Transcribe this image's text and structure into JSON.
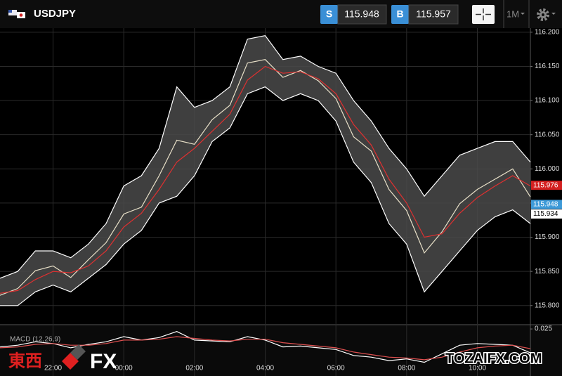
{
  "header": {
    "symbol": "USDJPY",
    "sell_label": "S",
    "sell_price": "115.948",
    "buy_label": "B",
    "buy_price": "115.957",
    "timeframe": "1M"
  },
  "watermark": {
    "logo_cjk": "東西",
    "logo_fx": "FX",
    "site": "TOZAIFX.COM"
  },
  "chart_data": [
    {
      "type": "line",
      "x": [
        "20:30",
        "21:00",
        "21:30",
        "22:00",
        "22:30",
        "23:00",
        "23:30",
        "00:00",
        "00:30",
        "01:00",
        "01:30",
        "02:00",
        "02:30",
        "03:00",
        "03:30",
        "04:00",
        "04:30",
        "05:00",
        "05:30",
        "06:00",
        "06:30",
        "07:00",
        "07:30",
        "08:00",
        "08:30",
        "09:00",
        "09:30",
        "10:00",
        "10:30",
        "11:00",
        "11:30"
      ],
      "series": [
        {
          "color": "#ffffff",
          "values": [
            115.84,
            115.85,
            115.88,
            115.88,
            115.87,
            115.89,
            115.92,
            115.975,
            115.99,
            116.03,
            116.12,
            116.09,
            116.1,
            116.12,
            116.19,
            116.195,
            116.16,
            116.165,
            116.15,
            116.14,
            116.1,
            116.07,
            116.03,
            116.0,
            115.96,
            115.99,
            116.02,
            116.03,
            116.04,
            116.04,
            116.01
          ]
        },
        {
          "color": "#ffffff",
          "values": [
            115.8,
            115.8,
            115.82,
            115.83,
            115.82,
            115.84,
            115.86,
            115.89,
            115.91,
            115.95,
            115.96,
            115.99,
            116.04,
            116.06,
            116.11,
            116.12,
            116.1,
            116.11,
            116.1,
            116.07,
            116.01,
            115.98,
            115.92,
            115.89,
            115.82,
            115.85,
            115.88,
            115.91,
            115.93,
            115.94,
            115.92
          ]
        },
        {
          "color": "#e8e0c8",
          "values": [
            115.815,
            115.825,
            115.851,
            115.858,
            115.841,
            115.867,
            115.892,
            115.934,
            115.944,
            115.99,
            116.042,
            116.036,
            116.072,
            116.093,
            116.155,
            116.16,
            116.134,
            116.144,
            116.129,
            116.103,
            116.047,
            116.026,
            115.97,
            115.939,
            115.877,
            115.908,
            115.949,
            115.97,
            115.985,
            116.0,
            115.959
          ]
        },
        {
          "color": "#e03030",
          "values": [
            115.818,
            115.822,
            115.838,
            115.85,
            115.848,
            115.858,
            115.88,
            115.915,
            115.935,
            115.97,
            116.01,
            116.03,
            116.055,
            116.08,
            116.13,
            116.15,
            116.14,
            116.142,
            116.132,
            116.11,
            116.065,
            116.035,
            115.985,
            115.95,
            115.9,
            115.905,
            115.935,
            115.958,
            115.975,
            115.99,
            115.975
          ]
        }
      ],
      "band_fill": "#4a4a4a",
      "ylim": [
        115.772,
        116.206
      ],
      "yticks": [
        {
          "value": 115.8,
          "label": "115.800"
        },
        {
          "value": 115.85,
          "label": "115.850"
        },
        {
          "value": 115.9,
          "label": "115.900"
        },
        {
          "value": 115.95,
          "label": "115.950"
        },
        {
          "value": 116.0,
          "label": "116.000"
        },
        {
          "value": 116.05,
          "label": "116.050"
        },
        {
          "value": 116.1,
          "label": "116.100"
        },
        {
          "value": 116.15,
          "label": "116.150"
        },
        {
          "value": 116.2,
          "label": "116.200"
        }
      ],
      "xticks": [
        "22:00",
        "00:00",
        "02:00",
        "04:00",
        "06:00",
        "08:00",
        "10:00"
      ],
      "grid": true,
      "price_tags": [
        {
          "value": 115.976,
          "color": "#d42020"
        },
        {
          "value": 115.948,
          "color": "#3d9ad8"
        },
        {
          "value": 115.934,
          "color": "#ffffff"
        }
      ]
    },
    {
      "type": "line",
      "title": "MACD (12,26,9)",
      "series": [
        {
          "color": "#ffffff",
          "values": [
            0.004,
            0.006,
            0.01,
            0.008,
            0.003,
            0.007,
            0.01,
            0.016,
            0.012,
            0.015,
            0.022,
            0.012,
            0.011,
            0.01,
            0.016,
            0.012,
            0.004,
            0.005,
            0.003,
            0.001,
            -0.006,
            -0.008,
            -0.012,
            -0.01,
            -0.014,
            -0.004,
            0.006,
            0.008,
            0.007,
            0.006,
            -0.003
          ]
        },
        {
          "color": "#e05050",
          "values": [
            0.003,
            0.004,
            0.007,
            0.008,
            0.006,
            0.006,
            0.008,
            0.012,
            0.012,
            0.013,
            0.016,
            0.014,
            0.012,
            0.011,
            0.013,
            0.013,
            0.009,
            0.007,
            0.005,
            0.003,
            -0.002,
            -0.005,
            -0.008,
            -0.009,
            -0.011,
            -0.008,
            -0.002,
            0.003,
            0.005,
            0.006,
            0.002
          ]
        }
      ],
      "ylim": [
        -0.03,
        0.03
      ],
      "yticks": [
        0.025
      ]
    }
  ]
}
